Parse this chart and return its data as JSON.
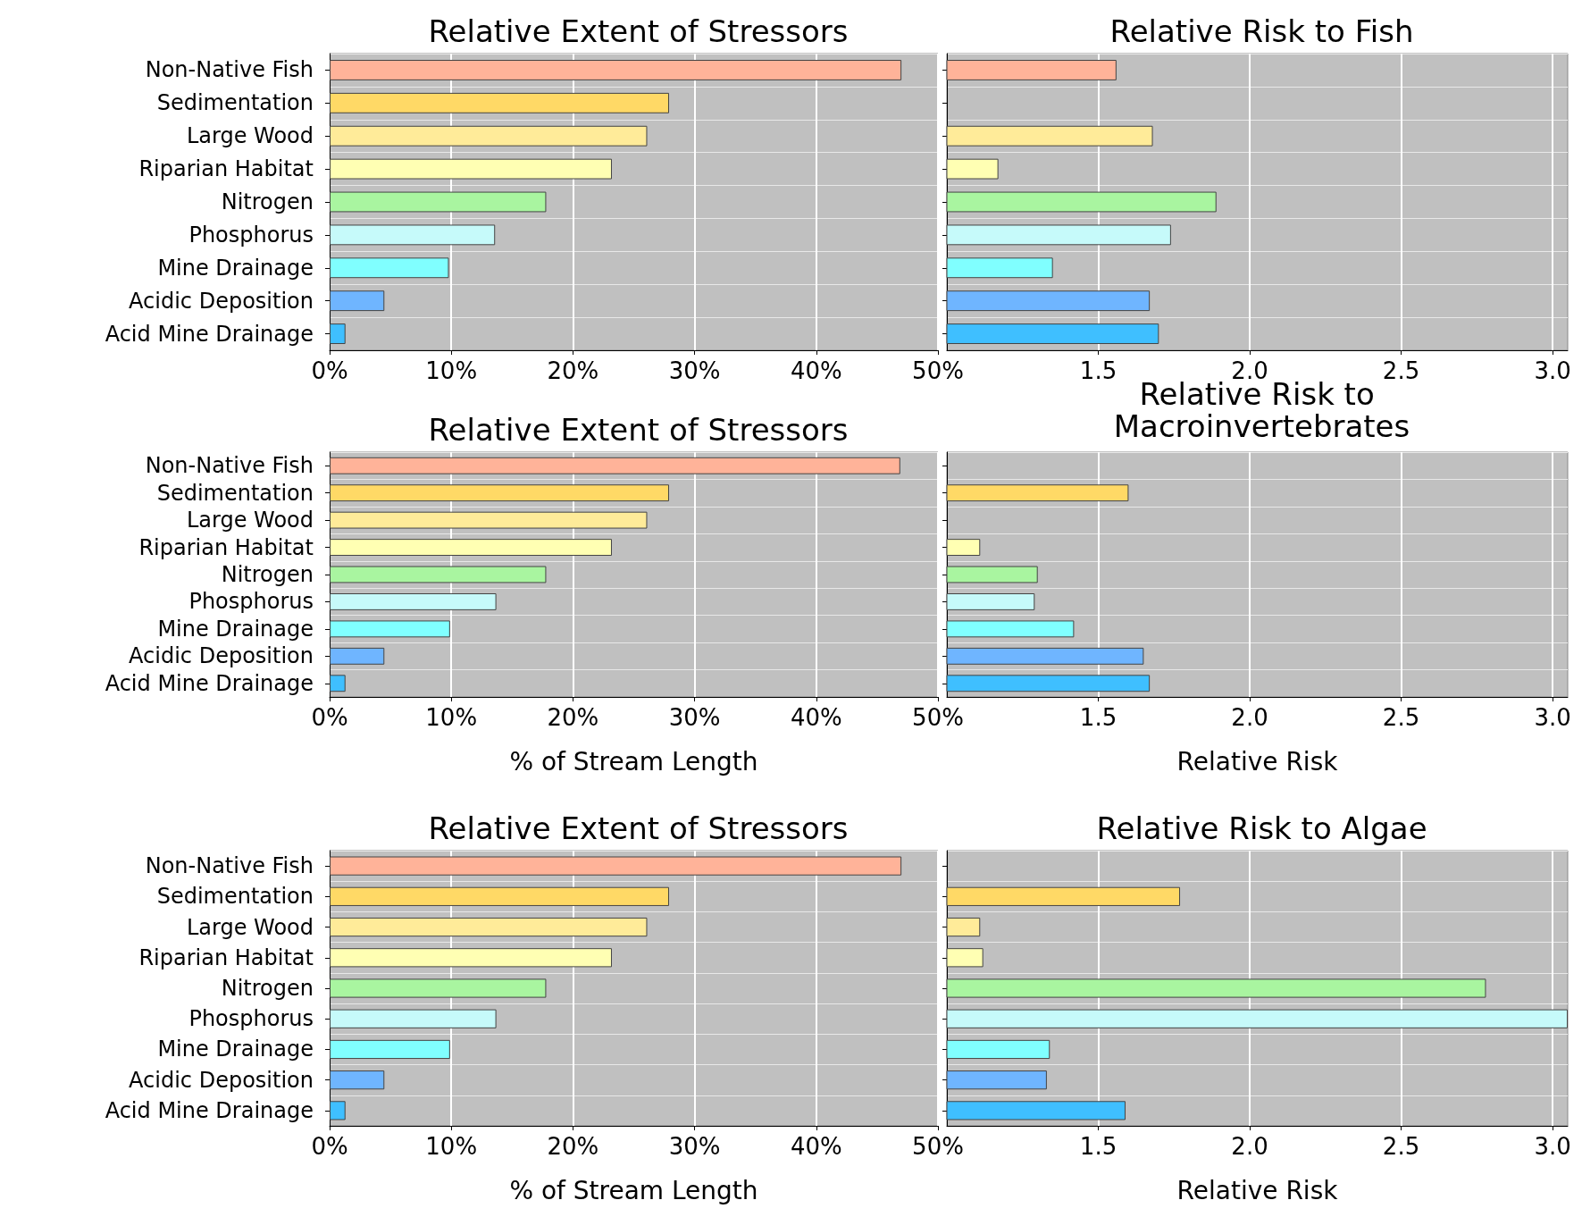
{
  "chart_data": [
    {
      "type": "bar",
      "orientation": "horizontal",
      "title": "Relative Extent of Stressors",
      "categories": [
        "Non-Native Fish",
        "Sedimentation",
        "Large Wood",
        "Riparian Habitat",
        "Nitrogen",
        "Phosphorus",
        "Mine Drainage",
        "Acidic Deposition",
        "Acid Mine Drainage"
      ],
      "values": [
        47.0,
        27.9,
        26.1,
        23.2,
        17.8,
        13.6,
        9.8,
        4.5,
        1.3
      ],
      "colors": [
        "#ffb399",
        "#ffd966",
        "#ffeb99",
        "#ffffb3",
        "#a9f5a0",
        "#c6fafa",
        "#80ffff",
        "#6fb5ff",
        "#3fbfff"
      ],
      "xlim": [
        0,
        50
      ],
      "xticks": [
        {
          "value": 0,
          "label": "0%"
        },
        {
          "value": 10,
          "label": "10%"
        },
        {
          "value": 20,
          "label": "20%"
        },
        {
          "value": 30,
          "label": "30%"
        },
        {
          "value": 40,
          "label": "40%"
        },
        {
          "value": 50,
          "label": "50%"
        }
      ],
      "grid": true
    },
    {
      "type": "bar",
      "orientation": "horizontal",
      "title": "Relative Risk to Fish",
      "categories": [
        "Non-Native Fish",
        "Sedimentation",
        "Large Wood",
        "Riparian Habitat",
        "Nitrogen",
        "Phosphorus",
        "Mine Drainage",
        "Acidic Deposition",
        "Acid Mine Drainage"
      ],
      "values": [
        1.56,
        null,
        1.68,
        1.17,
        1.89,
        1.74,
        1.35,
        1.67,
        1.7
      ],
      "colors": [
        "#ffb399",
        "#ffd966",
        "#ffeb99",
        "#ffffb3",
        "#a9f5a0",
        "#c6fafa",
        "#80ffff",
        "#6fb5ff",
        "#3fbfff"
      ],
      "xlim": [
        1.0,
        3.05
      ],
      "xticks": [
        {
          "value": 1.5,
          "label": "1.5"
        },
        {
          "value": 2,
          "label": "2.0"
        },
        {
          "value": 2.5,
          "label": "2.5"
        },
        {
          "value": 3,
          "label": "3.0"
        }
      ],
      "tick_labels": "x",
      "grid": true
    },
    {
      "type": "bar",
      "orientation": "horizontal",
      "title": "Relative Extent of Stressors",
      "xlabel": "% of Stream Length",
      "categories": [
        "Non-Native Fish",
        "Sedimentation",
        "Large Wood",
        "Riparian Habitat",
        "Nitrogen",
        "Phosphorus",
        "Mine Drainage",
        "Acidic Deposition",
        "Acid Mine Drainage"
      ],
      "values": [
        46.9,
        27.9,
        26.1,
        23.2,
        17.8,
        13.7,
        9.9,
        4.5,
        1.3
      ],
      "colors": [
        "#ffb399",
        "#ffd966",
        "#ffeb99",
        "#ffffb3",
        "#a9f5a0",
        "#c6fafa",
        "#80ffff",
        "#6fb5ff",
        "#3fbfff"
      ],
      "xlim": [
        0,
        50
      ],
      "xticks": [
        {
          "value": 0,
          "label": "0%"
        },
        {
          "value": 10,
          "label": "10%"
        },
        {
          "value": 20,
          "label": "20%"
        },
        {
          "value": 30,
          "label": "30%"
        },
        {
          "value": 40,
          "label": "40%"
        },
        {
          "value": 50,
          "label": "50%"
        }
      ],
      "grid": true
    },
    {
      "type": "bar",
      "orientation": "horizontal",
      "title": "Relative Risk to Macroinvertebrates",
      "xlabel": "Relative Risk",
      "categories": [
        "Non-Native Fish",
        "Sedimentation",
        "Large Wood",
        "Riparian Habitat",
        "Nitrogen",
        "Phosphorus",
        "Mine Drainage",
        "Acidic Deposition",
        "Acid Mine Drainage"
      ],
      "values": [
        null,
        1.6,
        null,
        1.11,
        1.3,
        1.29,
        1.42,
        1.65,
        1.67
      ],
      "colors": [
        "#ffb399",
        "#ffd966",
        "#ffeb99",
        "#ffffb3",
        "#a9f5a0",
        "#c6fafa",
        "#80ffff",
        "#6fb5ff",
        "#3fbfff"
      ],
      "xlim": [
        1.0,
        3.05
      ],
      "xticks": [
        {
          "value": 1.5,
          "label": "1.5"
        },
        {
          "value": 2,
          "label": "2.0"
        },
        {
          "value": 2.5,
          "label": "2.5"
        },
        {
          "value": 3,
          "label": "3.0"
        }
      ],
      "tick_labels": "x",
      "grid": true
    },
    {
      "type": "bar",
      "orientation": "horizontal",
      "title": "Relative Extent of Stressors",
      "xlabel": "% of Stream Length",
      "categories": [
        "Non-Native Fish",
        "Sedimentation",
        "Large Wood",
        "Riparian Habitat",
        "Nitrogen",
        "Phosphorus",
        "Mine Drainage",
        "Acidic Deposition",
        "Acid Mine Drainage"
      ],
      "values": [
        47.0,
        27.9,
        26.1,
        23.2,
        17.8,
        13.7,
        9.9,
        4.5,
        1.3
      ],
      "colors": [
        "#ffb399",
        "#ffd966",
        "#ffeb99",
        "#ffffb3",
        "#a9f5a0",
        "#c6fafa",
        "#80ffff",
        "#6fb5ff",
        "#3fbfff"
      ],
      "xlim": [
        0,
        50
      ],
      "xticks": [
        {
          "value": 0,
          "label": "0%"
        },
        {
          "value": 10,
          "label": "10%"
        },
        {
          "value": 20,
          "label": "20%"
        },
        {
          "value": 30,
          "label": "30%"
        },
        {
          "value": 40,
          "label": "40%"
        },
        {
          "value": 50,
          "label": "50%"
        }
      ],
      "grid": true
    },
    {
      "type": "bar",
      "orientation": "horizontal",
      "title": "Relative Risk to Algae",
      "xlabel": "Relative Risk",
      "categories": [
        "Non-Native Fish",
        "Sedimentation",
        "Large Wood",
        "Riparian Habitat",
        "Nitrogen",
        "Phosphorus",
        "Mine Drainage",
        "Acidic Deposition",
        "Acid Mine Drainage"
      ],
      "values": [
        null,
        1.77,
        1.11,
        1.12,
        2.78,
        3.05,
        1.34,
        1.33,
        1.59
      ],
      "colors": [
        "#ffb399",
        "#ffd966",
        "#ffeb99",
        "#ffffb3",
        "#a9f5a0",
        "#c6fafa",
        "#80ffff",
        "#6fb5ff",
        "#3fbfff"
      ],
      "xlim": [
        1.0,
        3.05
      ],
      "xticks": [
        {
          "value": 1.5,
          "label": "1.5"
        },
        {
          "value": 2,
          "label": "2.0"
        },
        {
          "value": 2.5,
          "label": "2.5"
        },
        {
          "value": 3,
          "label": "3.0"
        }
      ],
      "tick_labels": "x",
      "grid": true
    }
  ]
}
